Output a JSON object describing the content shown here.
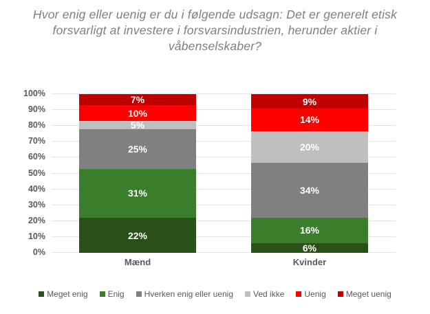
{
  "title": "Hvor enig eller uenig er du i følgende udsagn: Det er generelt etisk forsvarligt at investere i forsvarsindustrien, herunder aktier i våbenselskaber?",
  "colors": {
    "background": "#ffffff",
    "title_text": "#7f7f7f",
    "axis_text": "#595959",
    "gridline": "#e4e4e4",
    "data_label_text": "#ffffff"
  },
  "chart_data": {
    "type": "bar",
    "variant": "stacked-100-percent-column",
    "grid": true,
    "legend_position": "bottom",
    "data_label_suffix": "%",
    "categories": [
      "Mænd",
      "Kvinder"
    ],
    "series": [
      {
        "name": "Meget enig",
        "color": "#2a501a",
        "values": [
          22,
          6
        ]
      },
      {
        "name": "Enig",
        "color": "#3a7d2b",
        "values": [
          31,
          16
        ]
      },
      {
        "name": "Hverken enig eller uenig",
        "color": "#808080",
        "values": [
          25,
          34
        ]
      },
      {
        "name": "Ved ikke",
        "color": "#bfbfbf",
        "values": [
          5,
          20
        ]
      },
      {
        "name": "Uenig",
        "color": "#ff0000",
        "values": [
          10,
          14
        ]
      },
      {
        "name": "Meget uenig",
        "color": "#c00000",
        "values": [
          7,
          9
        ]
      }
    ],
    "y_axis": {
      "min": 0,
      "max": 100,
      "step": 10,
      "tick_labels": [
        "0%",
        "10%",
        "20%",
        "30%",
        "40%",
        "50%",
        "60%",
        "70%",
        "80%",
        "90%",
        "100%"
      ]
    }
  }
}
